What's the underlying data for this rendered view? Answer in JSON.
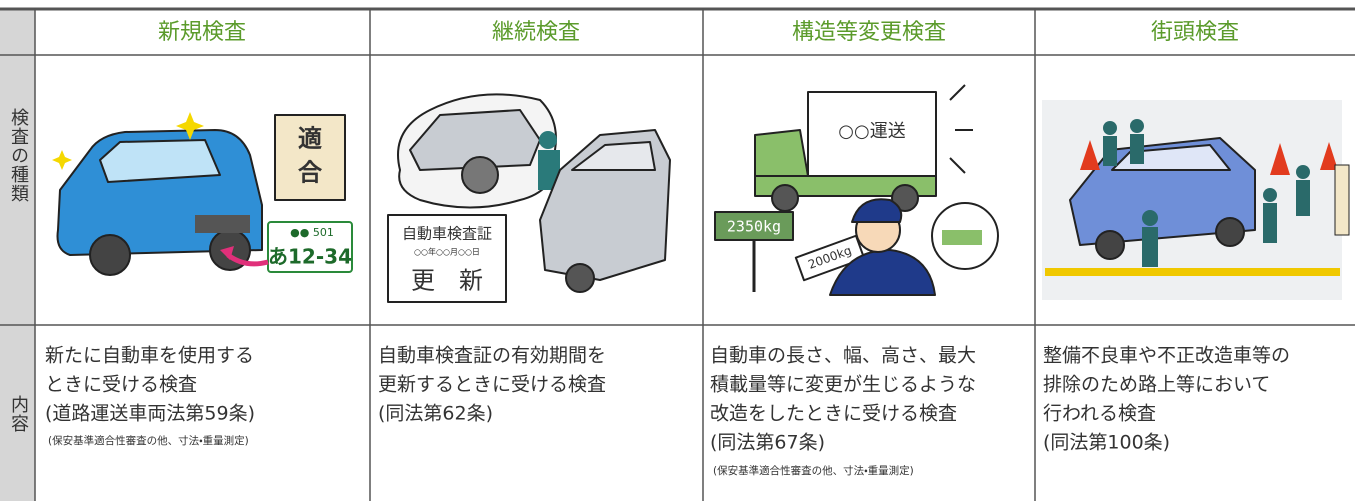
{
  "table": {
    "row_headers": [
      "検査の種類",
      "内容"
    ],
    "columns": [
      {
        "title": "新規検査",
        "description": [
          "新たに自動車を使用する",
          "ときに受ける検査",
          "(道路運送車両法第59条)"
        ],
        "note": "(保安基準適合性審査の他、寸法・重量測定)",
        "illustration_text": [
          "適",
          "合",
          "●● 501",
          "あ12-34"
        ]
      },
      {
        "title": "継続検査",
        "description": [
          "自動車検査証の有効期間を",
          "更新するときに受ける検査",
          "(同法第62条)"
        ],
        "illustration_text": [
          "自動車検査証",
          "○○年○○月○○日",
          "更　新"
        ]
      },
      {
        "title": "構造等変更検査",
        "description": [
          "自動車の長さ、幅、高さ、最大",
          "積載量等に変更が生じるような",
          "改造をしたときに受ける検査",
          "(同法第67条)"
        ],
        "note": "(保安基準適合性審査の他、寸法・重量測定)",
        "illustration_text": [
          "○○運送",
          "2350kg",
          "2000kg"
        ]
      },
      {
        "title": "街頭検査",
        "description": [
          "整備不良車や不正改造車等の",
          "排除のため路上等において",
          "行われる検査",
          "(同法第100条)"
        ]
      }
    ]
  }
}
